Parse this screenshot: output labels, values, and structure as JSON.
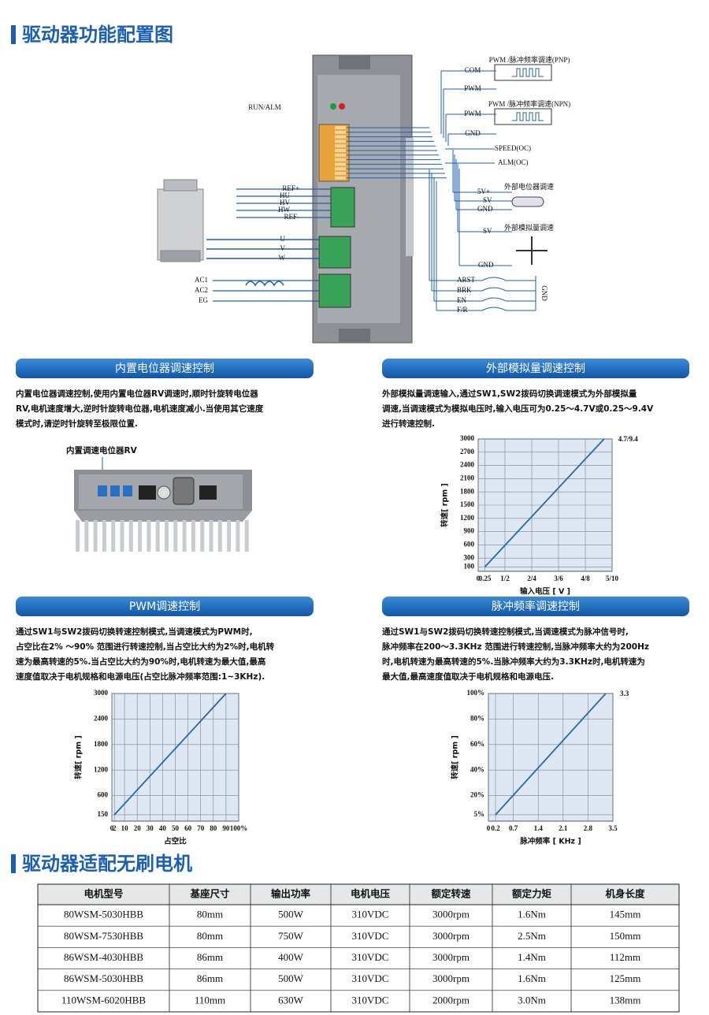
{
  "header": {
    "title": "驱动器功能配置图"
  },
  "diagram": {
    "labels": [
      "RUN/ALM",
      "PWM /脉冲频率调速(PNP)",
      "COM",
      "PWM",
      "PWM /脉冲频率调速(NPN)",
      "PWM",
      "GND",
      "SPEED(OC)",
      "ALM(OC)",
      "外部电位器调速",
      "5V+",
      "SV",
      "GND",
      "外部模拟量调速",
      "SV",
      "GND",
      "REF+",
      "HU",
      "HV",
      "HW",
      "REF-",
      "U",
      "V",
      "W",
      "AC1",
      "AC2",
      "EG",
      "ARST",
      "BRK",
      "EN",
      "F/R",
      "GND"
    ]
  },
  "panels": [
    {
      "title": "内置电位器调速控制",
      "text": [
        "内置电位器调速控制,使用内置电位器RV调速时,顺时针旋转电位器",
        "RV,电机速度增大,逆时针旋转电位器,电机速度减小.当使用其它速度",
        "模式时,请逆时针旋转至极限位置."
      ],
      "figure_label": "内置调速电位器RV"
    },
    {
      "title": "外部模拟量调速控制",
      "text": [
        "外部模拟量调速输入,通过SW1,SW2拨码切换调速模式为外部模拟量",
        "调速,当调速模式为模拟电压时,输入电压可为0.25～4.7V或0.25～9.4V",
        "进行转速控制."
      ],
      "chart": {
        "type": "line",
        "x_label": "输入电压 [ V ]",
        "y_label": "转速[ rpm ]",
        "annotation": "4.7/9.4",
        "grid": true,
        "xlim": [
          0,
          5
        ],
        "ylim": [
          0,
          3000
        ],
        "xticks": [
          0,
          0.25,
          {
            "value": 1,
            "label": "1/2"
          },
          {
            "value": 2,
            "label": "2/4"
          },
          {
            "value": 3,
            "label": "3/6"
          },
          {
            "value": 4,
            "label": "4/8"
          },
          {
            "value": 5,
            "label": "5/10"
          }
        ],
        "yticks": [
          100,
          300,
          600,
          900,
          1200,
          1500,
          1800,
          2100,
          2400,
          2700,
          3000
        ],
        "series": [
          {
            "color": "#2a66a6",
            "x": [
              0.25,
              4.7
            ],
            "values": [
              100,
              3000
            ]
          }
        ]
      }
    },
    {
      "title": "PWM调速控制",
      "text": [
        "通过SW1与SW2拨码切换转速控制模式,当调速模式为PWM时,",
        "占空比在2% ～90% 范围进行转速控制,当占空比大约为2%时,电机转",
        "速为最高转速的5%.当占空比大约为90%时,电机转速为最大值,最高",
        "速度值取决于电机规格和电源电压(占空比脉冲频率范围:1~3KHz)."
      ],
      "chart": {
        "type": "line",
        "x_label": "占空比",
        "y_label": "转速[ rpm ]",
        "grid": true,
        "xlim": [
          0,
          100
        ],
        "ylim": [
          0,
          3000
        ],
        "xticks": [
          0,
          2,
          10,
          20,
          30,
          40,
          50,
          60,
          70,
          80,
          90,
          {
            "value": 100,
            "label": "100%"
          }
        ],
        "yticks": [
          150,
          600,
          1200,
          1800,
          2400,
          3000
        ],
        "series": [
          {
            "color": "#2a66a6",
            "x": [
              2,
              90
            ],
            "values": [
              150,
              3000
            ]
          }
        ]
      }
    },
    {
      "title": "脉冲频率调速控制",
      "text": [
        "通过SW1与SW2拨码切换转速控制模式,当调速模式为脉冲信号时,",
        "脉冲频率在200～3.3KHz 范围进行转速控制,当脉冲频率大约为200Hz",
        "时,电机转速为最高转速的5%.当脉冲频率大约为3.3KHz时,电机转速为",
        "最大值,最高速度值取决于电机规格和电源电压."
      ],
      "chart": {
        "type": "line",
        "x_label": "脉冲频率 [ KHz ]",
        "y_label": "转速[ rpm ]",
        "annotation": "3.3",
        "grid": true,
        "xlim": [
          0,
          3.5
        ],
        "ylim": [
          0,
          100
        ],
        "xticks": [
          0,
          0.2,
          0.7,
          1.4,
          2.1,
          2.8,
          3.5
        ],
        "yticks": [
          {
            "value": 5,
            "label": "5%"
          },
          {
            "value": 20,
            "label": "20%"
          },
          {
            "value": 40,
            "label": "40%"
          },
          {
            "value": 60,
            "label": "60%"
          },
          {
            "value": 80,
            "label": "80%"
          },
          {
            "value": 100,
            "label": "100%"
          }
        ],
        "series": [
          {
            "color": "#2a66a6",
            "x": [
              0.2,
              3.3
            ],
            "values": [
              5,
              100
            ]
          }
        ]
      }
    }
  ],
  "motor_section": {
    "title": "驱动器适配无刷电机"
  },
  "table": {
    "header": [
      "电机型号",
      "基座尺寸",
      "输出功率",
      "电机电压",
      "额定转速",
      "额定力矩",
      "机身长度"
    ],
    "rows": [
      [
        "80WSM-5030HBB",
        "80mm",
        "500W",
        "310VDC",
        "3000rpm",
        "1.6Nm",
        "145mm"
      ],
      [
        "80WSM-7530HBB",
        "80mm",
        "750W",
        "310VDC",
        "3000rpm",
        "2.5Nm",
        "150mm"
      ],
      [
        "86WSM-4030HBB",
        "86mm",
        "400W",
        "310VDC",
        "3000rpm",
        "1.4Nm",
        "112mm"
      ],
      [
        "86WSM-5030HBB",
        "86mm",
        "500W",
        "310VDC",
        "3000rpm",
        "1.6Nm",
        "125mm"
      ],
      [
        "110WSM-6020HBB",
        "110mm",
        "630W",
        "310VDC",
        "2000rpm",
        "3.0Nm",
        "138mm"
      ]
    ]
  }
}
